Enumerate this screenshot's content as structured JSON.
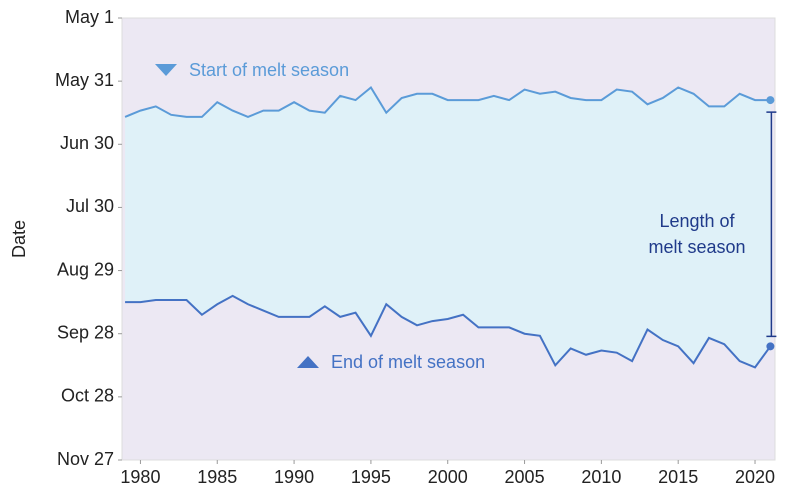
{
  "chart_data": {
    "type": "range-line",
    "ylabel": "Date",
    "x": [
      1979,
      1980,
      1981,
      1982,
      1983,
      1984,
      1985,
      1986,
      1987,
      1988,
      1989,
      1990,
      1991,
      1992,
      1993,
      1994,
      1995,
      1996,
      1997,
      1998,
      1999,
      2000,
      2001,
      2002,
      2003,
      2004,
      2005,
      2006,
      2007,
      2008,
      2009,
      2010,
      2011,
      2012,
      2013,
      2014,
      2015,
      2016,
      2017,
      2018,
      2019,
      2020,
      2021
    ],
    "series": [
      {
        "name": "Start of melt season",
        "color": "#5b9bd8",
        "marker": "down",
        "values": [
          168,
          165,
          163,
          167,
          168,
          168,
          161,
          165,
          168,
          165,
          165,
          161,
          165,
          166,
          158,
          160,
          154,
          166,
          159,
          157,
          157,
          160,
          160,
          160,
          158,
          160,
          155,
          157,
          156,
          159,
          160,
          160,
          155,
          156,
          162,
          159,
          154,
          157,
          163,
          163,
          157,
          160,
          160
        ]
      },
      {
        "name": "End of melt season",
        "color": "#4472c4",
        "marker": "up",
        "values": [
          256,
          256,
          255,
          255,
          255,
          262,
          257,
          253,
          257,
          260,
          263,
          263,
          263,
          258,
          263,
          261,
          272,
          257,
          263,
          267,
          265,
          264,
          262,
          268,
          268,
          268,
          271,
          272,
          286,
          278,
          281,
          279,
          280,
          284,
          269,
          274,
          277,
          285,
          273,
          276,
          284,
          287,
          277
        ]
      }
    ],
    "band_color": "#dff1f8",
    "annotation": [
      "Length of",
      "melt season"
    ],
    "annotation_color": "#1f3a8a",
    "xlim": [
      1978.8,
      2021.3
    ],
    "xticks": [
      1980,
      1985,
      1990,
      1995,
      2000,
      2005,
      2010,
      2015,
      2020
    ],
    "ylim": [
      121,
      331
    ],
    "y_inverted": true,
    "yticks": [
      {
        "value": 121,
        "label": "May 1"
      },
      {
        "value": 151,
        "label": "May 31"
      },
      {
        "value": 181,
        "label": "Jun 30"
      },
      {
        "value": 211,
        "label": "Jul 30"
      },
      {
        "value": 241,
        "label": "Aug 29"
      },
      {
        "value": 271,
        "label": "Sep 28"
      },
      {
        "value": 301,
        "label": "Oct 28"
      },
      {
        "value": 331,
        "label": "Nov 27"
      }
    ],
    "grid": false
  }
}
